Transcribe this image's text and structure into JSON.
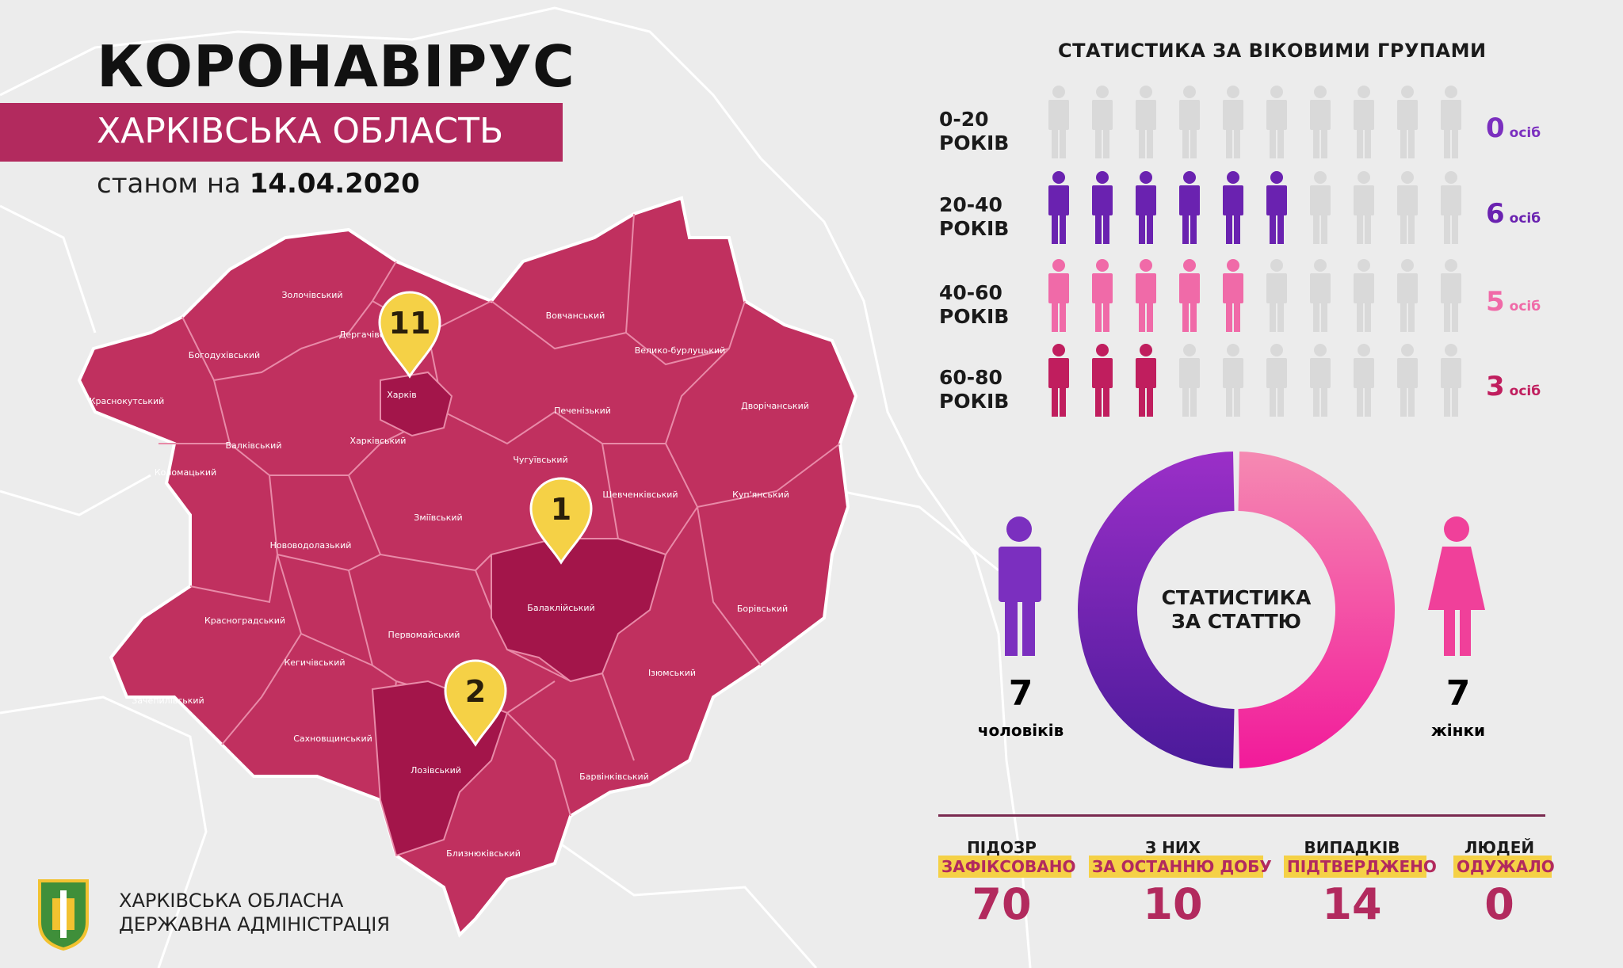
{
  "header": {
    "title": "КОРОНАВІРУС",
    "region": "ХАРКІВСЬКА ОБЛАСТЬ",
    "date_prefix": "станом на",
    "date": "14.04.2020"
  },
  "map": {
    "districts": [
      "Золочівський",
      "Дергачівський",
      "Богодухівський",
      "Краснокутський",
      "Харків",
      "Харківський",
      "Валківський",
      "Коломацький",
      "Вовчанський",
      "Велико-бурлуцький",
      "Печенізький",
      "Дворічанський",
      "Чугуївський",
      "Шевченківський",
      "Куп'янський",
      "Зміївський",
      "Нововодолазький",
      "Балаклійський",
      "Борівський",
      "Красноградський",
      "Первомайський",
      "Кегичівський",
      "Ізюмський",
      "Зачепилівський",
      "Сахновщинський",
      "Лозівський",
      "Барвінківський",
      "Близнюківський"
    ],
    "pins": [
      {
        "district": "Харків",
        "count": "11"
      },
      {
        "district": "Балаклійський",
        "count": "1"
      },
      {
        "district": "Лозівський",
        "count": "2"
      }
    ]
  },
  "agency": {
    "line1": "ХАРКІВСЬКА ОБЛАСНА",
    "line2": "ДЕРЖАВНА АДМІНІСТРАЦІЯ"
  },
  "age_stats": {
    "title": "СТАТИСТИКА ЗА ВІКОВИМИ ГРУПАМИ",
    "unit": "осіб",
    "total_icons": 10,
    "groups": [
      {
        "range": "0-20",
        "suffix": "РОКІВ",
        "count": 0,
        "count_text": "0",
        "color": "#7b2fbf"
      },
      {
        "range": "20-40",
        "suffix": "РОКІВ",
        "count": 6,
        "count_text": "6",
        "color": "#6a22b0"
      },
      {
        "range": "40-60",
        "suffix": "РОКІВ",
        "count": 5,
        "count_text": "5",
        "color": "#f06aa8"
      },
      {
        "range": "60-80",
        "suffix": "РОКІВ",
        "count": 3,
        "count_text": "3",
        "color": "#c01e5e"
      }
    ],
    "inactive_color": "#d9d9d9"
  },
  "sex_stats": {
    "title_line1": "СТАТИСТИКА",
    "title_line2": "ЗА СТАТТЮ",
    "men": {
      "count": "7",
      "label": "чоловіків",
      "color": "#7b2fbf",
      "share": 0.5
    },
    "women": {
      "count": "7",
      "label": "жінки",
      "color": "#f0409a",
      "share": 0.5
    }
  },
  "summary": [
    {
      "head": "ПІДОЗР",
      "tag": "ЗАФІКСОВАНО",
      "value": "70"
    },
    {
      "head": "З НИХ",
      "tag": "ЗА ОСТАННЮ ДОБУ",
      "value": "10"
    },
    {
      "head": "ВИПАДКІВ",
      "tag": "ПІДТВЕРДЖЕНО",
      "value": "14"
    },
    {
      "head": "ЛЮДЕЙ",
      "tag": "ОДУЖАЛО",
      "value": "0"
    }
  ],
  "colors": {
    "map_fill": "#c0305f",
    "map_pin_fill": "#a3154a",
    "pin_yellow": "#f5d146",
    "banner": "#b22a5e"
  }
}
